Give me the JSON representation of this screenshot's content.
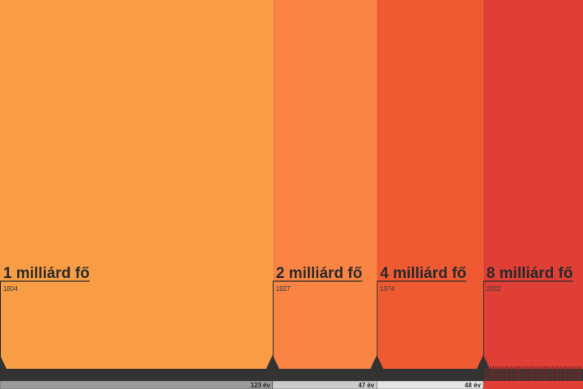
{
  "chart_data": {
    "type": "timeline",
    "categories": [
      "1 milliárd fő",
      "2 milliárd fő",
      "4 milliárd fő",
      "8 milliárd fő"
    ],
    "x": [
      1804,
      1927,
      1974,
      2022
    ],
    "xlim": [
      1804,
      2067
    ],
    "values": [
      123,
      47,
      48,
      null
    ],
    "value_labels": [
      "123 év",
      "47 év",
      "48 év",
      null
    ],
    "colors": [
      "#f99d45",
      "#f98444",
      "#f05a33",
      "#e03f36"
    ],
    "strip_colors": [
      "#9c9c9c",
      "#cbcbcb",
      "#e4e4e4"
    ]
  }
}
